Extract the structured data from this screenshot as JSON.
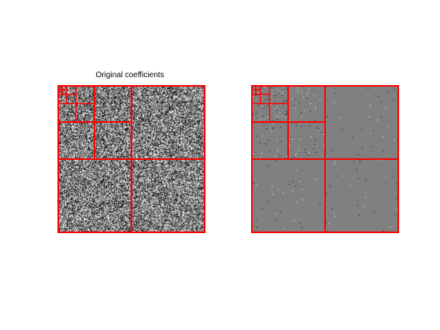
{
  "figure": {
    "left_panel": {
      "title": "Original coefficients",
      "kind": "noise-dense",
      "background_hex": "#808080"
    },
    "right_panel": {
      "title": "",
      "kind": "sparse-thresholded",
      "background_hex": "#808080",
      "sparse_dot_colors": [
        "#ffffff",
        "#000000"
      ]
    },
    "decomposition_levels": 4,
    "grid_line_color": "#ff0000"
  }
}
